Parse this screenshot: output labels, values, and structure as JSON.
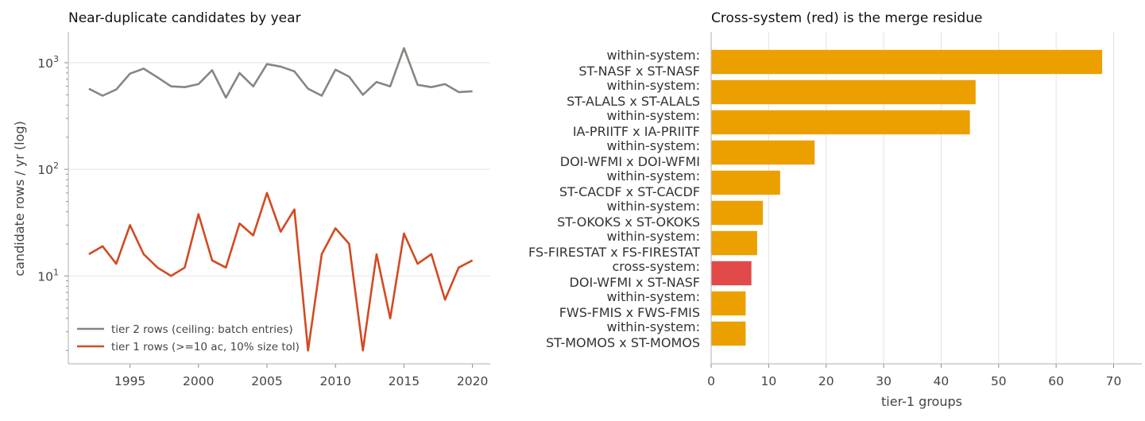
{
  "chart_data": [
    {
      "type": "line",
      "title": "Near-duplicate candidates by year",
      "xlabel": "",
      "ylabel": "candidate rows / yr (log)",
      "yscale": "log",
      "ylim": [
        1.5,
        1950
      ],
      "xlim": [
        1990.5,
        2021.3
      ],
      "xticks": [
        1995,
        2000,
        2005,
        2010,
        2015,
        2020
      ],
      "yticks": [
        {
          "value": 10,
          "base": "10",
          "exp": "1"
        },
        {
          "value": 100,
          "base": "10",
          "exp": "2"
        },
        {
          "value": 1000,
          "base": "10",
          "exp": "3"
        }
      ],
      "grid": "y",
      "legend_position": "lower-left",
      "x": [
        1992,
        1993,
        1994,
        1995,
        1996,
        1997,
        1998,
        1999,
        2000,
        2001,
        2002,
        2003,
        2004,
        2005,
        2006,
        2007,
        2008,
        2009,
        2010,
        2011,
        2012,
        2013,
        2014,
        2015,
        2016,
        2017,
        2018,
        2019,
        2020
      ],
      "series": [
        {
          "name": "tier 2 rows (ceiling: batch entries)",
          "color": "#888680",
          "values": [
            570,
            490,
            560,
            790,
            880,
            730,
            600,
            590,
            630,
            850,
            470,
            800,
            600,
            970,
            920,
            830,
            570,
            490,
            860,
            740,
            500,
            660,
            600,
            1370,
            620,
            590,
            630,
            530,
            540
          ]
        },
        {
          "name": "tier 1 rows (>=10 ac, 10% size tol)",
          "color": "#d24a22",
          "values": [
            16,
            19,
            13,
            30,
            16,
            12,
            10,
            12,
            38,
            14,
            12,
            31,
            24,
            60,
            26,
            42,
            2,
            16,
            28,
            20,
            2,
            16,
            4,
            25,
            13,
            16,
            6,
            12,
            14
          ]
        }
      ]
    },
    {
      "type": "bar",
      "orientation": "horizontal",
      "title": "Cross-system (red) is the merge residue",
      "xlabel": "tier-1 groups",
      "ylabel": "",
      "xlim": [
        0,
        72
      ],
      "xticks": [
        0,
        10,
        20,
        30,
        40,
        50,
        60,
        70
      ],
      "grid": "x",
      "categories": [
        {
          "line1": "within-system:",
          "line2": "ST-NASF x ST-NASF"
        },
        {
          "line1": "within-system:",
          "line2": "ST-ALALS x ST-ALALS"
        },
        {
          "line1": "within-system:",
          "line2": "IA-PRIITF x IA-PRIITF"
        },
        {
          "line1": "within-system:",
          "line2": "DOI-WFMI x DOI-WFMI"
        },
        {
          "line1": "within-system:",
          "line2": "ST-CACDF x ST-CACDF"
        },
        {
          "line1": "within-system:",
          "line2": "ST-OKOKS x ST-OKOKS"
        },
        {
          "line1": "within-system:",
          "line2": "FS-FIRESTAT x FS-FIRESTAT"
        },
        {
          "line1": "cross-system:",
          "line2": "DOI-WFMI x ST-NASF"
        },
        {
          "line1": "within-system:",
          "line2": "FWS-FMIS x FWS-FMIS"
        },
        {
          "line1": "within-system:",
          "line2": "ST-MOMOS x ST-MOMOS"
        }
      ],
      "values": [
        68,
        46,
        45,
        18,
        12,
        9,
        8,
        7,
        6,
        6
      ],
      "kinds": [
        "within",
        "within",
        "within",
        "within",
        "within",
        "within",
        "within",
        "cross",
        "within",
        "within"
      ],
      "colors": {
        "within": "#eba000",
        "cross": "#e14a48"
      }
    }
  ]
}
